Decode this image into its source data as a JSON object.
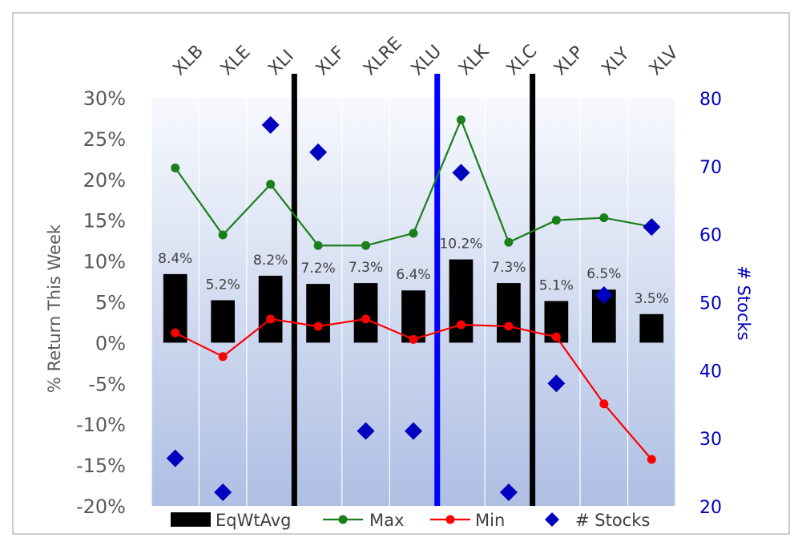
{
  "chart_data": {
    "type": "bar",
    "categories": [
      "XLB",
      "XLE",
      "XLI",
      "XLF",
      "XLRE",
      "XLU",
      "XLK",
      "XLC",
      "XLP",
      "XLY",
      "XLV"
    ],
    "series": [
      {
        "name": "EqWtAvg",
        "type": "bar",
        "axis": "left",
        "values": [
          8.4,
          5.2,
          8.2,
          7.2,
          7.3,
          6.4,
          10.2,
          7.3,
          5.1,
          6.5,
          3.5
        ],
        "labels": [
          "8.4%",
          "5.2%",
          "8.2%",
          "7.2%",
          "7.3%",
          "6.4%",
          "10.2%",
          "7.3%",
          "5.1%",
          "6.5%",
          "3.5%"
        ]
      },
      {
        "name": "Max",
        "type": "line",
        "axis": "left",
        "values": [
          21.4,
          13.2,
          19.4,
          11.9,
          11.9,
          13.4,
          27.3,
          12.3,
          15.0,
          15.3,
          14.2
        ]
      },
      {
        "name": "Min",
        "type": "line",
        "axis": "left",
        "values": [
          1.2,
          -1.7,
          2.9,
          2.0,
          2.9,
          0.4,
          2.2,
          2.0,
          0.7,
          -7.5,
          -14.3
        ]
      },
      {
        "name": "# Stocks",
        "type": "scatter",
        "axis": "right",
        "values": [
          27,
          22,
          76,
          72,
          31,
          31,
          69,
          22,
          38,
          51,
          61
        ]
      }
    ],
    "ylabel": "% Return This Week",
    "y2label": "# Stocks",
    "ylim": [
      -20,
      30
    ],
    "y2lim": [
      20,
      80
    ],
    "yticks": [
      "30%",
      "25%",
      "20%",
      "15%",
      "10%",
      "5%",
      "0%",
      "-5%",
      "-10%",
      "-15%",
      "-20%"
    ],
    "yticks_values": [
      30,
      25,
      20,
      15,
      10,
      5,
      0,
      -5,
      -10,
      -15,
      -20
    ],
    "y2ticks": [
      80,
      70,
      60,
      50,
      40,
      30,
      20
    ],
    "dividers": [
      {
        "after_category": "XLI",
        "color": "#000000"
      },
      {
        "after_category": "XLU",
        "color": "#0000ff"
      },
      {
        "after_category": "XLC",
        "color": "#000000"
      }
    ],
    "legend_position": "bottom",
    "colors": {
      "bar": "#000000",
      "max": "#1a7f1a",
      "min": "#ff0000",
      "stocks": "#0000c0",
      "right_axis": "#0000c0"
    }
  }
}
